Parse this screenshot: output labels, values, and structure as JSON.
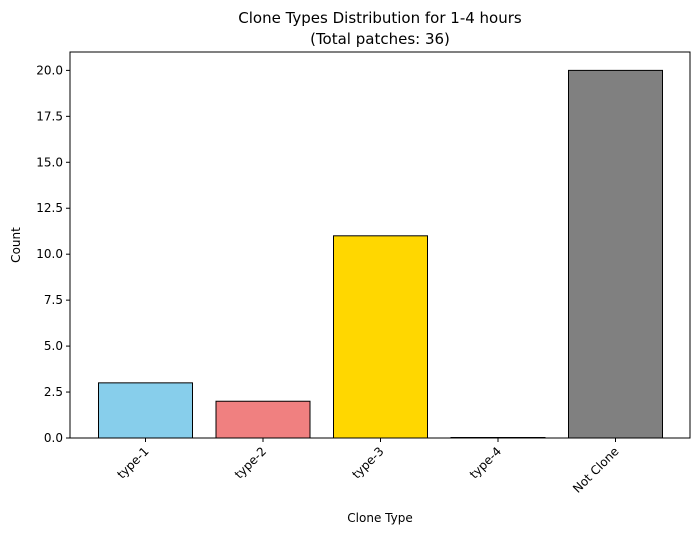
{
  "chart_data": {
    "type": "bar",
    "title_line1": "Clone Types Distribution for 1-4 hours",
    "title_line2": "(Total patches: 36)",
    "xlabel": "Clone Type",
    "ylabel": "Count",
    "categories": [
      "type-1",
      "type-2",
      "type-3",
      "type-4",
      "Not Clone"
    ],
    "values": [
      3,
      2,
      11,
      0,
      20
    ],
    "colors": [
      "#87CEEB",
      "#F08080",
      "#FFD700",
      "#87CEEB",
      "#808080"
    ],
    "edge_color": "#000000",
    "ylim": [
      0,
      21
    ],
    "yticks": [
      0.0,
      2.5,
      5.0,
      7.5,
      10.0,
      12.5,
      15.0,
      17.5,
      20.0
    ],
    "grid": false,
    "legend": "none"
  }
}
